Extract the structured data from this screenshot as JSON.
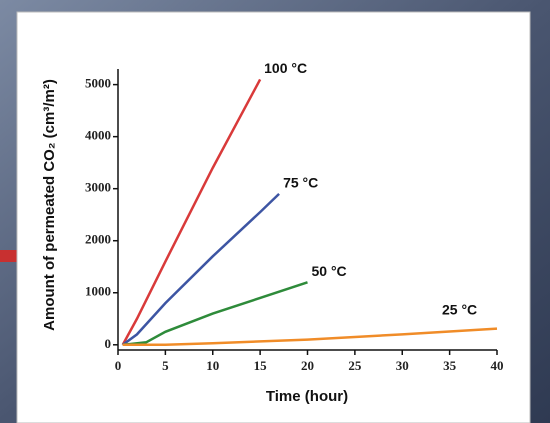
{
  "chart_data": {
    "type": "line",
    "xlabel": "Time (hour)",
    "ylabel": "Amount of permeated CO₂ (cm³/m²)",
    "xlim": [
      0,
      40
    ],
    "xticks": [
      0,
      5,
      10,
      15,
      20,
      25,
      30,
      35,
      40
    ],
    "ylim": [
      -100,
      5300
    ],
    "yticks": [
      0,
      1000,
      2000,
      3000,
      4000,
      5000
    ],
    "series": [
      {
        "name": "100 °C",
        "color": "#d93a3a",
        "x": [
          0.5,
          2,
          5,
          10,
          15
        ],
        "values": [
          0,
          500,
          1600,
          3400,
          5100
        ]
      },
      {
        "name": "75 °C",
        "color": "#3d55a3",
        "x": [
          0.5,
          2,
          5,
          10,
          15,
          17
        ],
        "values": [
          0,
          200,
          800,
          1700,
          2550,
          2900
        ]
      },
      {
        "name": "50 °C",
        "color": "#2e8b3a",
        "x": [
          0.5,
          3,
          5,
          10,
          15,
          20
        ],
        "values": [
          0,
          50,
          250,
          600,
          900,
          1200
        ]
      },
      {
        "name": "25 °C",
        "color": "#f08c28",
        "x": [
          0.5,
          5,
          10,
          20,
          30,
          40
        ],
        "values": [
          0,
          0,
          30,
          100,
          200,
          310
        ]
      }
    ]
  }
}
